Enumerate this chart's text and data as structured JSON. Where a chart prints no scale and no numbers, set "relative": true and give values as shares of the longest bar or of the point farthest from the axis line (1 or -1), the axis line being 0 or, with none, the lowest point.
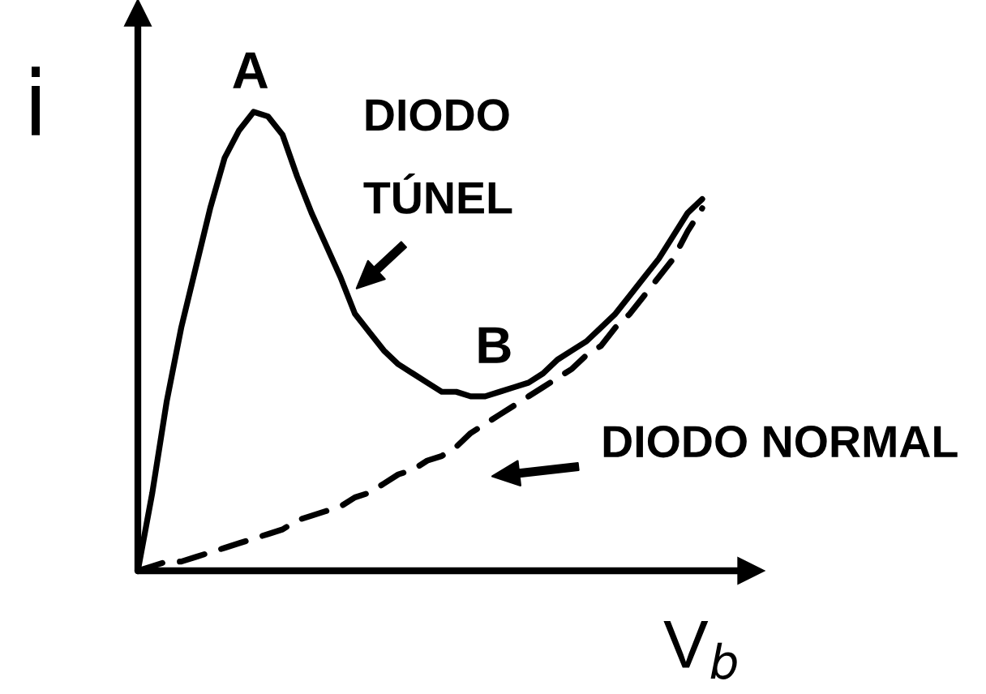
{
  "chart_data": {
    "type": "line",
    "relative": true,
    "xlabel": "V$_{b}$",
    "ylabel": "i",
    "legend": false,
    "categories": [
      null,
      null,
      null,
      null,
      null,
      null,
      null,
      null,
      null,
      null,
      null,
      null,
      null,
      null,
      null,
      null,
      null,
      null,
      null,
      null,
      null,
      null,
      null,
      null,
      null,
      null,
      null,
      null,
      null,
      null,
      null,
      null,
      null,
      null,
      null,
      null,
      null,
      null,
      null,
      null
    ],
    "series": [
      {
        "name": "DIODO\nTÚNEL",
        "color": "#000000",
        "line_style": "solid",
        "values": [
          0,
          0.17,
          0.37,
          0.53,
          0.66,
          0.79,
          0.9,
          0.96,
          1.0,
          0.99,
          0.95,
          0.86,
          0.78,
          0.71,
          0.64,
          0.56,
          0.52,
          0.48,
          0.45,
          0.43,
          0.41,
          0.39,
          0.39,
          0.38,
          0.38,
          0.39,
          0.4,
          0.41,
          0.43,
          0.46,
          0.48,
          0.5,
          0.53,
          0.56,
          0.6,
          0.64,
          0.68,
          0.73,
          0.78,
          0.81
        ]
      },
      {
        "name": "DIODO NORMAL",
        "color": "#000000",
        "line_style": "dashed",
        "values": [
          0,
          0.01,
          0.02,
          0.02,
          0.03,
          0.04,
          0.05,
          0.06,
          0.07,
          0.08,
          0.09,
          0.11,
          0.12,
          0.13,
          0.14,
          0.16,
          0.17,
          0.19,
          0.21,
          0.22,
          0.24,
          0.25,
          0.27,
          0.3,
          0.32,
          0.34,
          0.36,
          0.38,
          0.4,
          0.42,
          0.44,
          0.47,
          0.49,
          0.53,
          0.56,
          0.6,
          0.64,
          0.68,
          0.74,
          0.79
        ]
      }
    ],
    "annotations": [
      {
        "text": "A",
        "y": 1.0
      },
      {
        "text": "B",
        "y": 0.38
      }
    ]
  }
}
